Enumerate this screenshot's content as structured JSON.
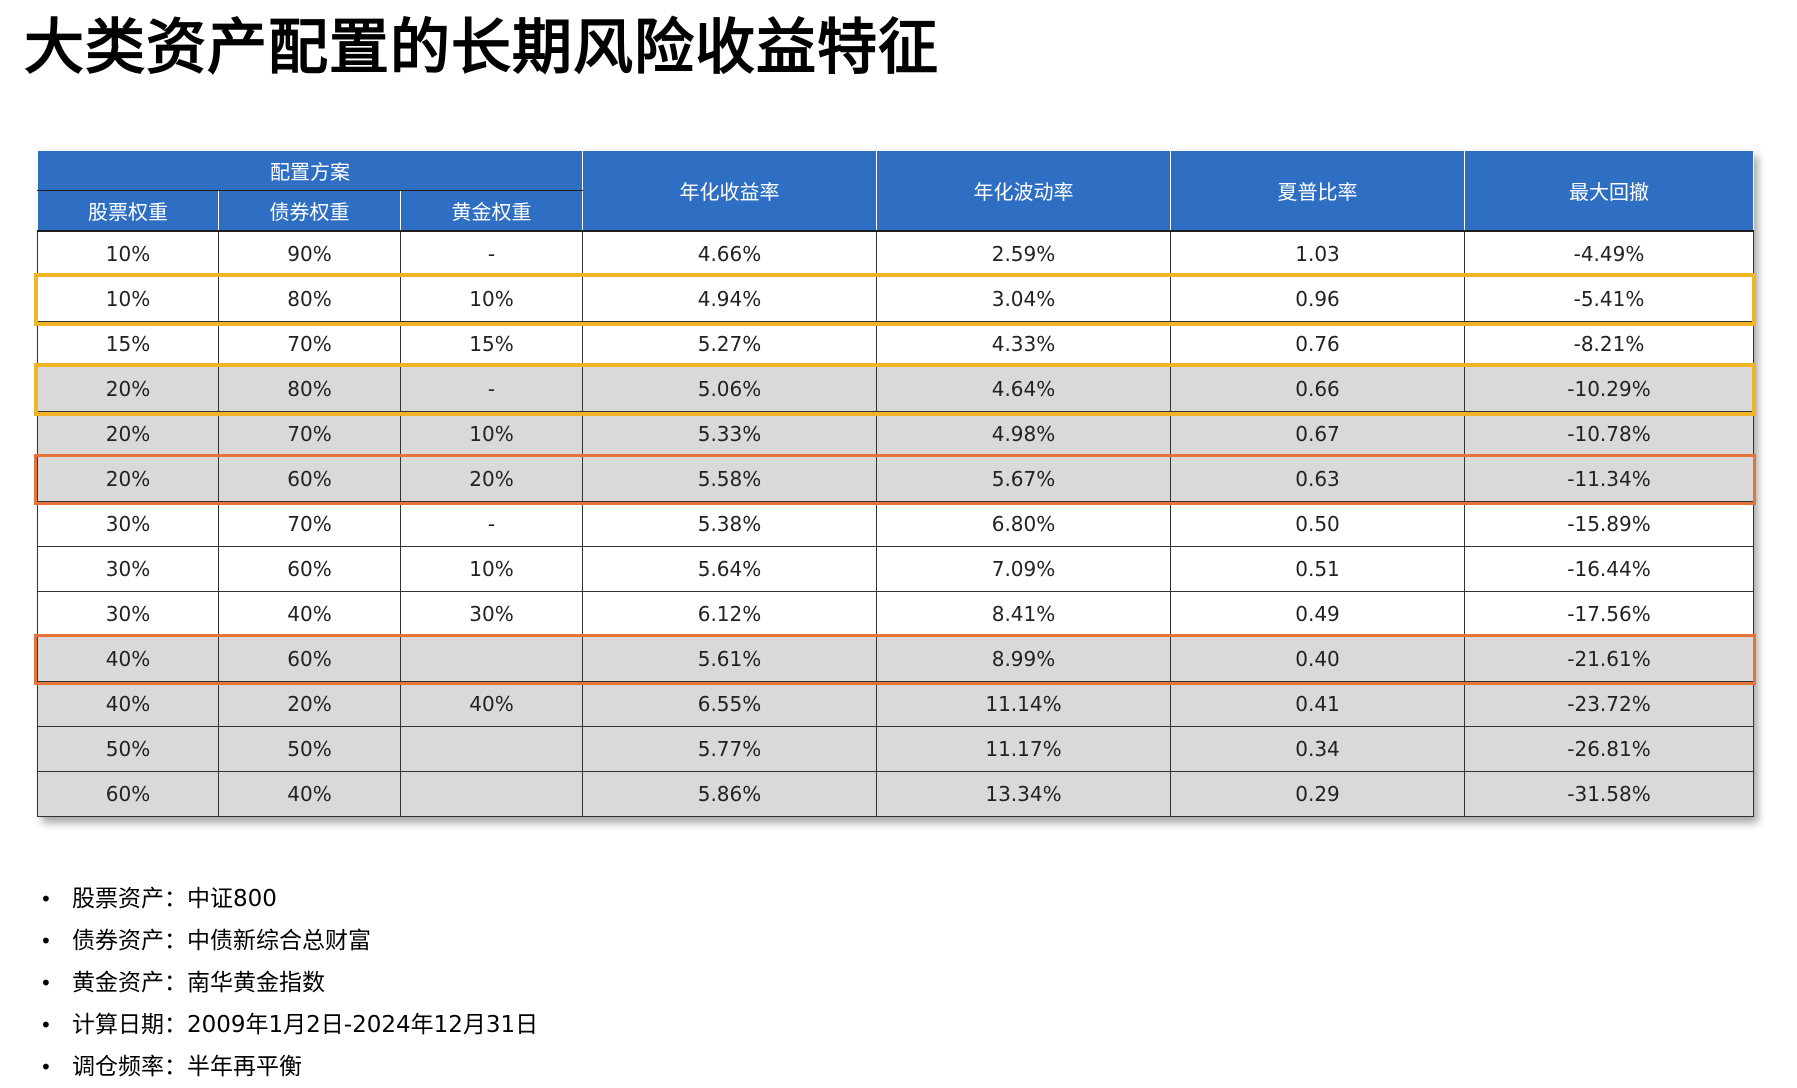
{
  "title": "大类资产配置的长期风险收益特征",
  "table": {
    "group_header": "配置方案",
    "sub_headers": [
      "股票权重",
      "债券权重",
      "黄金权重"
    ],
    "metric_headers": [
      "年化收益率",
      "年化波动率",
      "夏普比率",
      "最大回撤"
    ],
    "rows": [
      {
        "stock": "10%",
        "bond": "90%",
        "gold": "-",
        "ret": "4.66%",
        "vol": "2.59%",
        "sharpe": "1.03",
        "mdd": "-4.49%"
      },
      {
        "stock": "10%",
        "bond": "80%",
        "gold": "10%",
        "ret": "4.94%",
        "vol": "3.04%",
        "sharpe": "0.96",
        "mdd": "-5.41%"
      },
      {
        "stock": "15%",
        "bond": "70%",
        "gold": "15%",
        "ret": "5.27%",
        "vol": "4.33%",
        "sharpe": "0.76",
        "mdd": "-8.21%"
      },
      {
        "stock": "20%",
        "bond": "80%",
        "gold": "-",
        "ret": "5.06%",
        "vol": "4.64%",
        "sharpe": "0.66",
        "mdd": "-10.29%"
      },
      {
        "stock": "20%",
        "bond": "70%",
        "gold": "10%",
        "ret": "5.33%",
        "vol": "4.98%",
        "sharpe": "0.67",
        "mdd": "-10.78%"
      },
      {
        "stock": "20%",
        "bond": "60%",
        "gold": "20%",
        "ret": "5.58%",
        "vol": "5.67%",
        "sharpe": "0.63",
        "mdd": "-11.34%"
      },
      {
        "stock": "30%",
        "bond": "70%",
        "gold": "-",
        "ret": "5.38%",
        "vol": "6.80%",
        "sharpe": "0.50",
        "mdd": "-15.89%"
      },
      {
        "stock": "30%",
        "bond": "60%",
        "gold": "10%",
        "ret": "5.64%",
        "vol": "7.09%",
        "sharpe": "0.51",
        "mdd": "-16.44%"
      },
      {
        "stock": "30%",
        "bond": "40%",
        "gold": "30%",
        "ret": "6.12%",
        "vol": "8.41%",
        "sharpe": "0.49",
        "mdd": "-17.56%"
      },
      {
        "stock": "40%",
        "bond": "60%",
        "gold": "",
        "ret": "5.61%",
        "vol": "8.99%",
        "sharpe": "0.40",
        "mdd": "-21.61%"
      },
      {
        "stock": "40%",
        "bond": "20%",
        "gold": "40%",
        "ret": "6.55%",
        "vol": "11.14%",
        "sharpe": "0.41",
        "mdd": "-23.72%"
      },
      {
        "stock": "50%",
        "bond": "50%",
        "gold": "",
        "ret": "5.77%",
        "vol": "11.17%",
        "sharpe": "0.34",
        "mdd": "-26.81%"
      },
      {
        "stock": "60%",
        "bond": "40%",
        "gold": "",
        "ret": "5.86%",
        "vol": "13.34%",
        "sharpe": "0.29",
        "mdd": "-31.58%"
      }
    ],
    "row_shading": [
      "white",
      "white",
      "white",
      "grey",
      "grey",
      "grey",
      "white",
      "white",
      "white",
      "grey",
      "grey",
      "grey",
      "grey"
    ],
    "highlighted_rows": [
      {
        "row": 2,
        "color": "#f0b429"
      },
      {
        "row": 4,
        "color": "#f0b429"
      },
      {
        "row": 6,
        "color": "#e8733a"
      },
      {
        "row": 10,
        "color": "#e8733a"
      }
    ],
    "header_color": "#2f6fc3",
    "shade_color": "#d9d9d9"
  },
  "notes": [
    "股票资产：中证800",
    "债券资产：中债新综合总财富",
    "黄金资产：南华黄金指数",
    "计算日期：2009年1月2日-2024年12月31日",
    "调仓频率：半年再平衡"
  ]
}
